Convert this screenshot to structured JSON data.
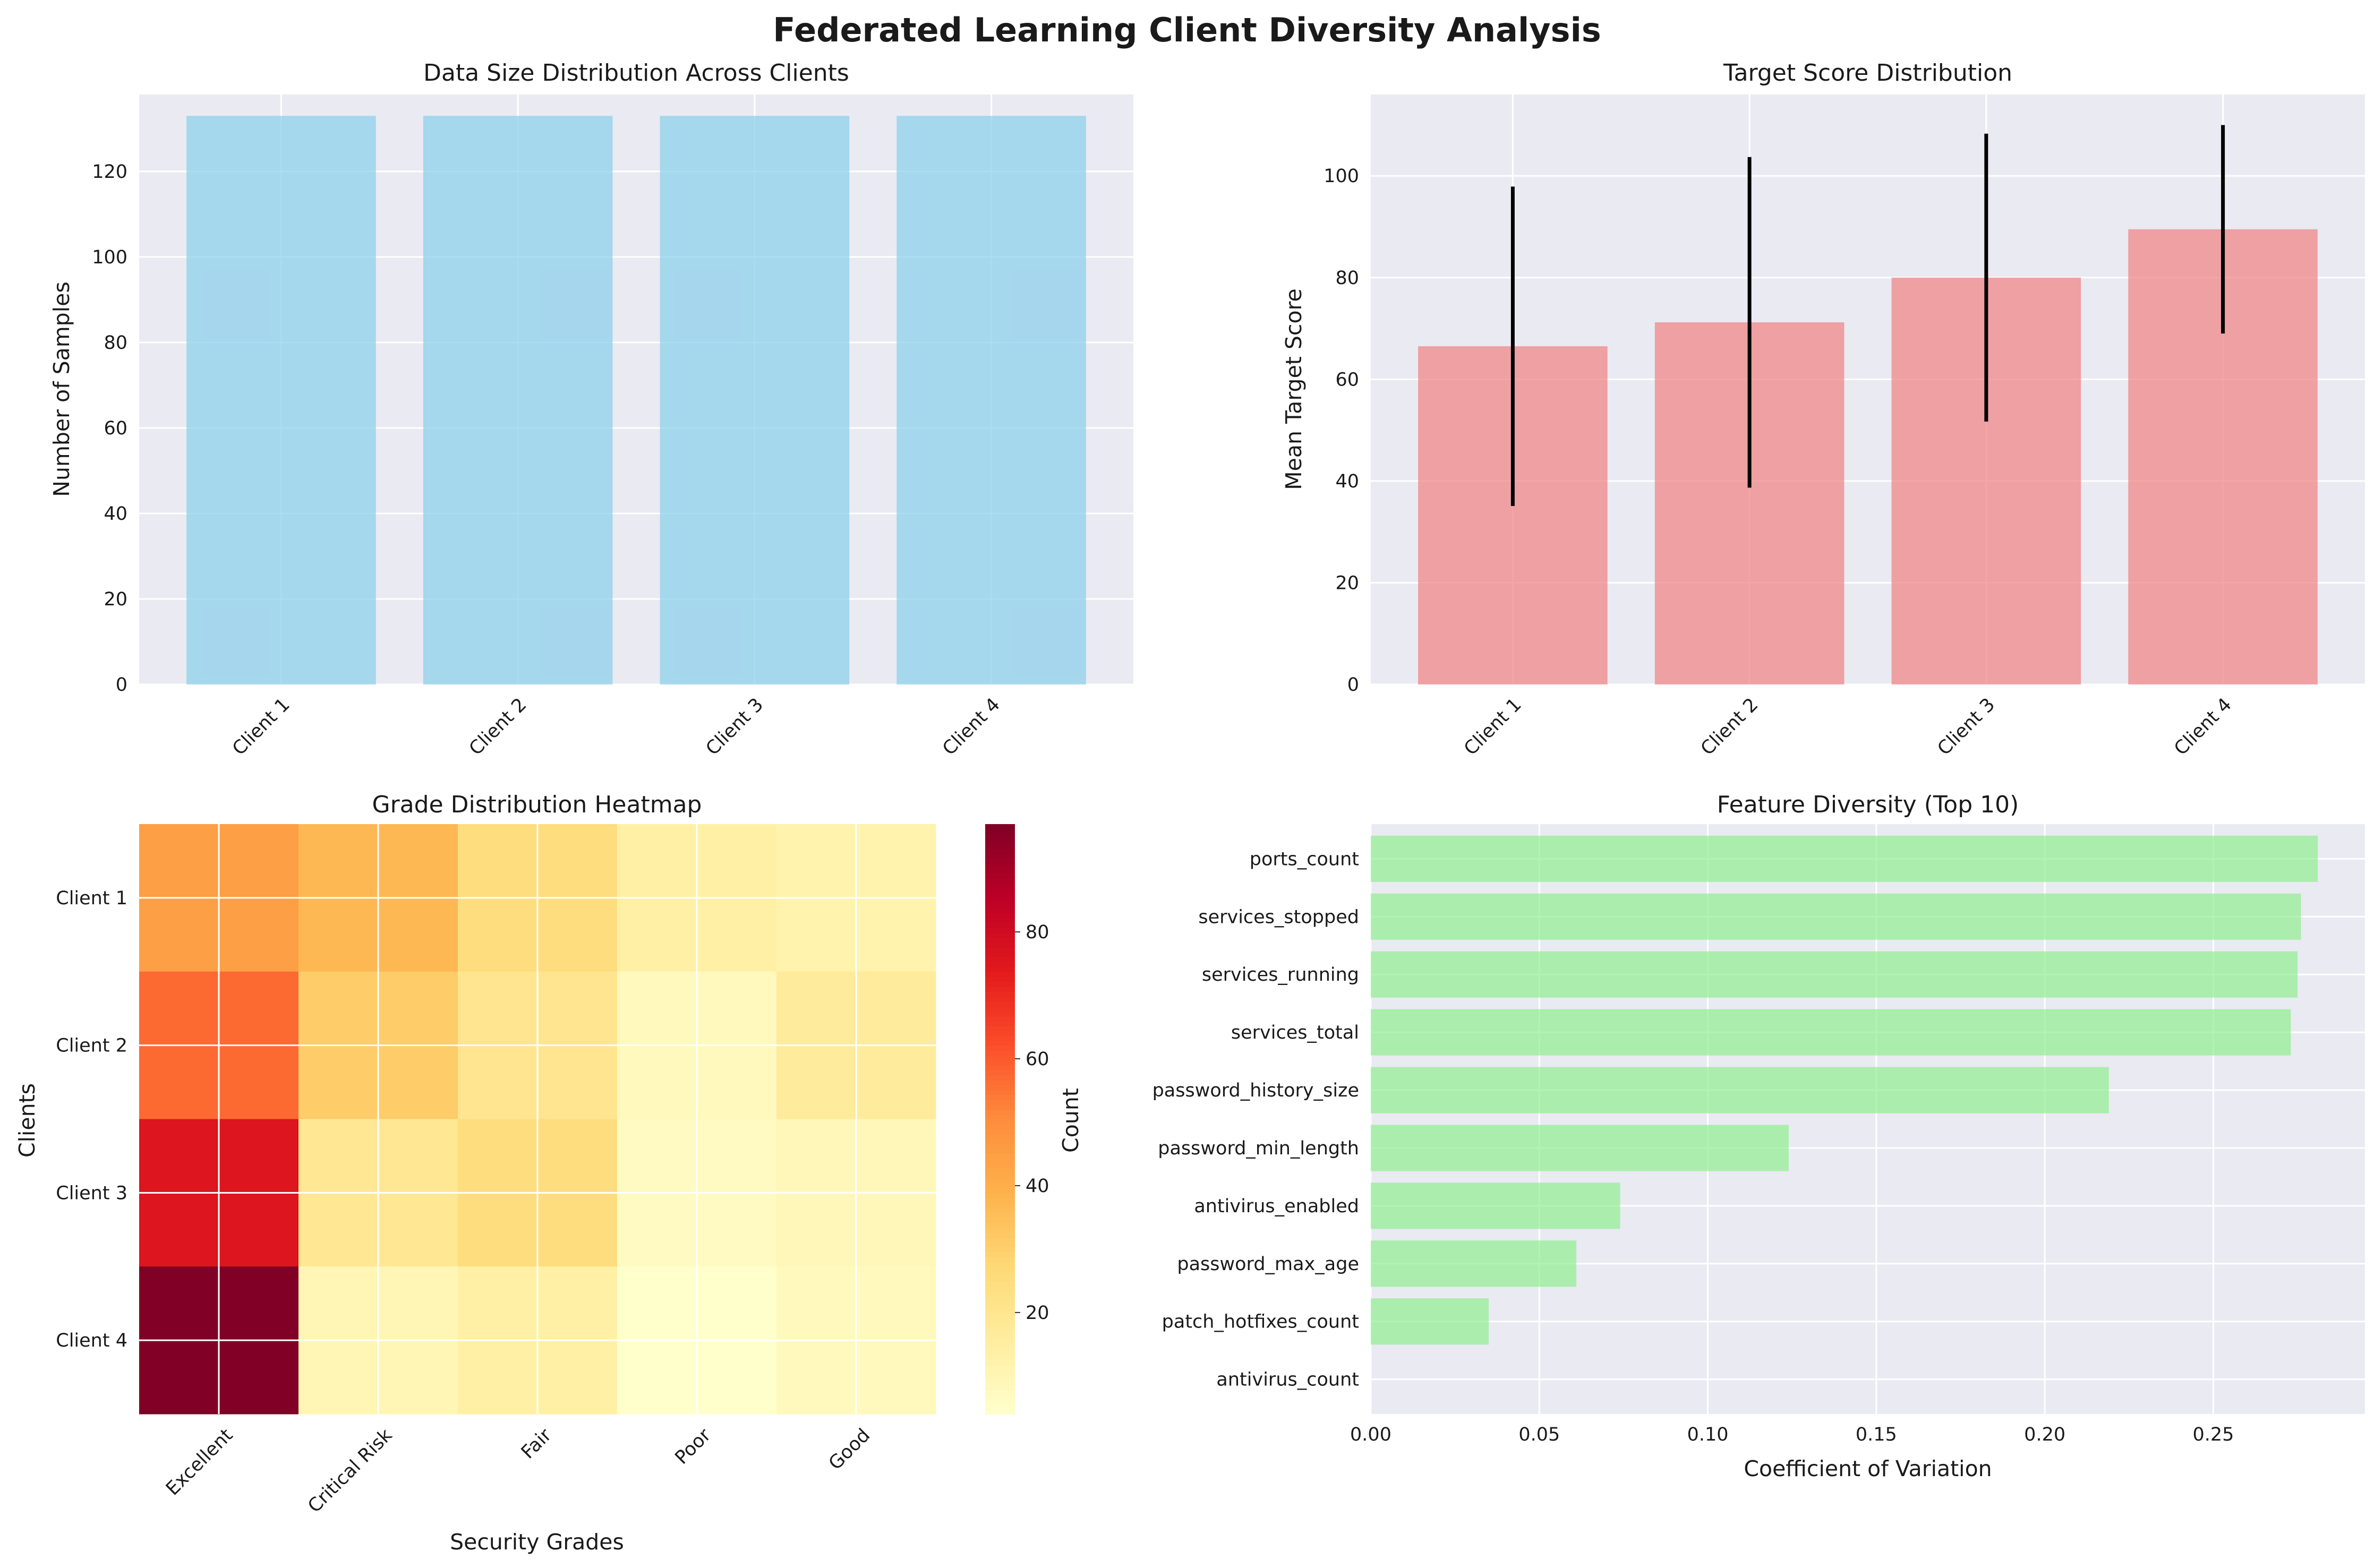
{
  "figure": {
    "title": "Federated Learning Client Diversity Analysis"
  },
  "chart_data": [
    {
      "type": "bar",
      "title": "Data Size Distribution Across Clients",
      "xlabel": "",
      "ylabel": "Number of Samples",
      "categories": [
        "Client 1",
        "Client 2",
        "Client 3",
        "Client 4"
      ],
      "values": [
        133,
        133,
        133,
        133
      ],
      "ylim": [
        0,
        138
      ],
      "yticks": [
        0,
        20,
        40,
        60,
        80,
        100,
        120
      ],
      "color": "#87ceeb",
      "grid": true
    },
    {
      "type": "bar",
      "title": "Target Score Distribution",
      "xlabel": "",
      "ylabel": "Mean Target Score",
      "categories": [
        "Client 1",
        "Client 2",
        "Client 3",
        "Client 4"
      ],
      "values": [
        66.5,
        71.2,
        80.0,
        89.5
      ],
      "errors": [
        31.4,
        32.5,
        28.3,
        20.5
      ],
      "ylim": [
        0,
        116
      ],
      "yticks": [
        0,
        20,
        40,
        60,
        80,
        100
      ],
      "color": "#f08080",
      "grid": true
    },
    {
      "type": "heatmap",
      "title": "Grade Distribution Heatmap",
      "xlabel": "Security Grades",
      "ylabel": "Clients",
      "x_categories": [
        "Excellent",
        "Critical Risk",
        "Fair",
        "Poor",
        "Good"
      ],
      "y_categories": [
        "Client 1",
        "Client 2",
        "Client 3",
        "Client 4"
      ],
      "values": [
        [
          45,
          37,
          25,
          14,
          12
        ],
        [
          57,
          31,
          20,
          8,
          17
        ],
        [
          76,
          19,
          25,
          7,
          9
        ],
        [
          97,
          10,
          14,
          4,
          8
        ]
      ],
      "colorbar": {
        "label": "Count",
        "min": 4,
        "max": 97,
        "ticks": [
          20,
          40,
          60,
          80
        ]
      },
      "colormap": "YlOrRd"
    },
    {
      "type": "bar",
      "orientation": "horizontal",
      "title": "Feature Diversity (Top 10)",
      "xlabel": "Coefficient of Variation",
      "ylabel": "",
      "categories": [
        "ports_count",
        "services_stopped",
        "services_running",
        "services_total",
        "password_history_size",
        "password_min_length",
        "antivirus_enabled",
        "password_max_age",
        "patch_hotfixes_count",
        "antivirus_count"
      ],
      "values": [
        0.281,
        0.276,
        0.275,
        0.273,
        0.219,
        0.124,
        0.074,
        0.061,
        0.035,
        0.0
      ],
      "xlim": [
        0,
        0.295
      ],
      "xticks": [
        "0.00",
        "0.05",
        "0.10",
        "0.15",
        "0.20",
        "0.25"
      ],
      "color": "#90ee90",
      "grid": true
    }
  ]
}
